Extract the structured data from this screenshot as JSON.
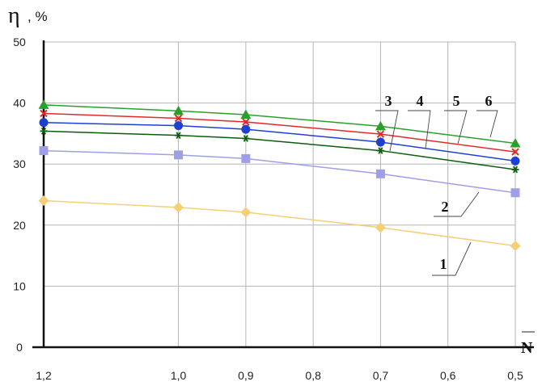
{
  "chart_data": {
    "type": "line",
    "ylabel": "η",
    "ylabel_unit": ", %",
    "xlabel": "N",
    "x_ticks": [
      "1,2",
      "1,0",
      "0,9",
      "0,8",
      "0,7",
      "0,6",
      "0,5"
    ],
    "x_tick_values": [
      1.2,
      1.0,
      0.9,
      0.8,
      0.7,
      0.6,
      0.5
    ],
    "x_reversed": true,
    "xlim": [
      1.2,
      0.5
    ],
    "y_ticks": [
      "0",
      "10",
      "20",
      "30",
      "40",
      "50"
    ],
    "y_tick_values": [
      0,
      10,
      20,
      30,
      40,
      50
    ],
    "ylim": [
      0,
      50
    ],
    "grid": true,
    "x": [
      1.2,
      1.0,
      0.9,
      0.7,
      0.5
    ],
    "series": [
      {
        "name": "1",
        "color": "#f5cf78",
        "marker": "diamond",
        "values": [
          24.0,
          22.9,
          22.1,
          19.6,
          16.6
        ]
      },
      {
        "name": "2",
        "color": "#9f9fe8",
        "marker": "square",
        "values": [
          32.2,
          31.5,
          30.9,
          28.4,
          25.3
        ]
      },
      {
        "name": "3",
        "color": "#0b5d0b",
        "marker": "star",
        "values": [
          35.4,
          34.7,
          34.2,
          32.2,
          29.1
        ]
      },
      {
        "name": "4",
        "color": "#1f3fcf",
        "marker": "circle",
        "values": [
          36.8,
          36.3,
          35.7,
          33.6,
          30.5
        ]
      },
      {
        "name": "5",
        "color": "#e02a2a",
        "marker": "x",
        "values": [
          38.3,
          37.5,
          36.9,
          34.9,
          32.0
        ]
      },
      {
        "name": "6",
        "color": "#2aa02a",
        "marker": "triangle",
        "values": [
          39.7,
          38.7,
          38.1,
          36.2,
          33.4
        ]
      }
    ]
  }
}
